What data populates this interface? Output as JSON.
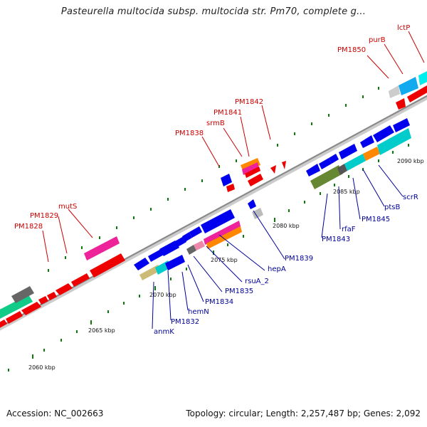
{
  "title": "Pasteurella multocida subsp. multocida str. Pm70, complete g...",
  "footer": {
    "accession": "Accession: NC_002663",
    "info": "Topology: circular; Length: 2,257,487 bp; Genes: 2,092"
  },
  "colors": {
    "forward_gene": "#ff0000",
    "reverse_gene": "#0000ee",
    "label_forward": "#cc0000",
    "label_reverse": "#000099",
    "backbone": "#999999",
    "tick": "#0b7a0b"
  },
  "kbp_ticks": [
    "2060 kbp",
    "2065 kbp",
    "2070 kbp",
    "2075 kbp",
    "2080 kbp",
    "2085 kbp",
    "2090 kbp"
  ],
  "forward_labels": [
    "PM1828",
    "PM1829",
    "mutS",
    "PM1838",
    "srmB",
    "PM1841",
    "PM1842",
    "PM1850",
    "purB",
    "lctP"
  ],
  "reverse_labels": [
    "anmK",
    "PM1832",
    "hemN",
    "PM1834",
    "PM1835",
    "rsuA_2",
    "hepA",
    "PM1839",
    "PM1843",
    "rfaF",
    "PM1845",
    "ptsB",
    "scrR"
  ]
}
